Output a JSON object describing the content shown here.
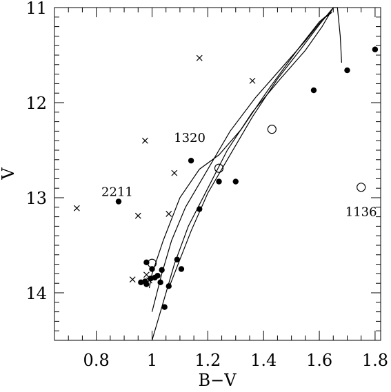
{
  "chart_data": {
    "type": "scatter",
    "xlabel": "B−V",
    "ylabel": "V",
    "xlim": [
      0.65,
      1.82
    ],
    "ylim": [
      14.5,
      11.0
    ],
    "y_inverted": true,
    "grid": false,
    "legend": "none",
    "x_ticks": [
      {
        "value": 0.8,
        "label": "0.8"
      },
      {
        "value": 1.0,
        "label": "1"
      },
      {
        "value": 1.2,
        "label": "1.2"
      },
      {
        "value": 1.4,
        "label": "1.4"
      },
      {
        "value": 1.6,
        "label": "1.6"
      },
      {
        "value": 1.8,
        "label": "1.8"
      }
    ],
    "y_ticks": [
      {
        "value": 11,
        "label": "11"
      },
      {
        "value": 12,
        "label": "12"
      },
      {
        "value": 13,
        "label": "13"
      },
      {
        "value": 14,
        "label": "14"
      }
    ],
    "series": [
      {
        "marker": "filled-circle",
        "points": [
          [
            0.88,
            13.04
          ],
          [
            1.14,
            12.61
          ],
          [
            1.17,
            13.12
          ],
          [
            1.24,
            12.83
          ],
          [
            1.3,
            12.83
          ],
          [
            1.58,
            11.87
          ],
          [
            1.7,
            11.66
          ],
          [
            1.8,
            11.44
          ],
          [
            0.96,
            13.89
          ],
          [
            0.975,
            13.88
          ],
          [
            0.98,
            13.91
          ],
          [
            0.98,
            13.68
          ],
          [
            0.995,
            13.85
          ],
          [
            1.0,
            13.75
          ],
          [
            1.01,
            13.84
          ],
          [
            1.02,
            13.82
          ],
          [
            1.03,
            13.89
          ],
          [
            1.035,
            13.76
          ],
          [
            1.06,
            13.93
          ],
          [
            1.09,
            13.65
          ],
          [
            1.105,
            13.75
          ],
          [
            1.045,
            14.15
          ]
        ]
      },
      {
        "marker": "open-circle",
        "points": [
          [
            1.24,
            12.69
          ],
          [
            1.43,
            12.28
          ],
          [
            1.75,
            12.89
          ],
          [
            1.0,
            13.69
          ]
        ]
      },
      {
        "marker": "cross",
        "points": [
          [
            0.73,
            13.11
          ],
          [
            0.95,
            13.19
          ],
          [
            0.975,
            12.4
          ],
          [
            1.06,
            13.17
          ],
          [
            1.08,
            12.74
          ],
          [
            1.17,
            11.53
          ],
          [
            1.36,
            11.77
          ],
          [
            0.93,
            13.86
          ],
          [
            0.98,
            13.81
          ],
          [
            0.99,
            13.87
          ]
        ]
      }
    ],
    "curves": [
      [
        [
          1.0,
          14.5
        ],
        [
          1.04,
          14.1
        ],
        [
          1.08,
          13.7
        ],
        [
          1.13,
          13.3
        ],
        [
          1.2,
          12.9
        ],
        [
          1.27,
          12.5
        ],
        [
          1.36,
          12.1
        ],
        [
          1.46,
          11.75
        ],
        [
          1.55,
          11.45
        ],
        [
          1.61,
          11.2
        ],
        [
          1.65,
          11.0
        ]
      ],
      [
        [
          1.0,
          14.2
        ],
        [
          1.035,
          13.8
        ],
        [
          1.07,
          13.45
        ],
        [
          1.12,
          13.1
        ],
        [
          1.2,
          12.7
        ],
        [
          1.28,
          12.3
        ],
        [
          1.37,
          11.95
        ],
        [
          1.46,
          11.65
        ],
        [
          1.55,
          11.35
        ],
        [
          1.61,
          11.13
        ],
        [
          1.645,
          11.05
        ]
      ],
      [
        [
          0.99,
          13.95
        ],
        [
          1.0,
          13.8
        ],
        [
          1.04,
          13.45
        ],
        [
          1.1,
          13.0
        ],
        [
          1.17,
          12.7
        ],
        [
          1.24,
          12.55
        ],
        [
          1.32,
          12.28
        ],
        [
          1.42,
          11.85
        ],
        [
          1.52,
          11.45
        ],
        [
          1.6,
          11.15
        ],
        [
          1.64,
          11.05
        ]
      ],
      [
        [
          1.06,
          13.95
        ],
        [
          1.1,
          13.65
        ],
        [
          1.14,
          13.35
        ],
        [
          1.2,
          12.95
        ],
        [
          1.27,
          12.6
        ],
        [
          1.36,
          12.15
        ],
        [
          1.45,
          11.75
        ],
        [
          1.53,
          11.45
        ],
        [
          1.6,
          11.18
        ],
        [
          1.65,
          11.0
        ],
        [
          1.665,
          11.0
        ],
        [
          1.675,
          11.3
        ],
        [
          1.68,
          11.58
        ]
      ]
    ],
    "annotations": [
      {
        "text": "2211",
        "x": 0.875,
        "y": 12.94
      },
      {
        "text": "1320",
        "x": 1.135,
        "y": 12.37
      },
      {
        "text": "1136",
        "x": 1.75,
        "y": 13.15
      }
    ]
  }
}
